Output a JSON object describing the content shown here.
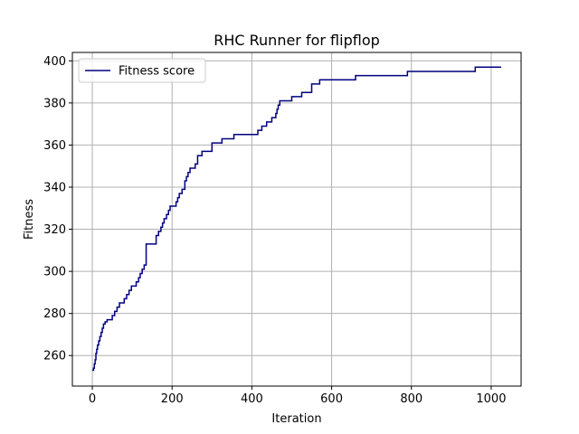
{
  "chart_data": {
    "type": "line",
    "title": "RHC Runner for flipflop",
    "xlabel": "Iteration",
    "ylabel": "Fitness",
    "xlim": [
      -50,
      1075
    ],
    "ylim": [
      245.5,
      404
    ],
    "xticks": [
      0,
      200,
      400,
      600,
      800,
      1000
    ],
    "yticks": [
      260,
      280,
      300,
      320,
      340,
      360,
      380,
      400
    ],
    "grid": true,
    "legend_position": "top-left",
    "line_color": "#000080",
    "grid_color": "#b0b0b0",
    "series": [
      {
        "name": "Fitness score",
        "step": true,
        "x": [
          0,
          3,
          5,
          7,
          9,
          11,
          13,
          16,
          19,
          22,
          25,
          28,
          32,
          37,
          50,
          56,
          62,
          68,
          80,
          86,
          92,
          98,
          110,
          116,
          120,
          125,
          130,
          135,
          160,
          166,
          172,
          176,
          180,
          186,
          191,
          195,
          210,
          214,
          218,
          225,
          232,
          236,
          240,
          245,
          258,
          264,
          275,
          300,
          325,
          355,
          415,
          425,
          437,
          450,
          460,
          463,
          466,
          470,
          475,
          500,
          525,
          550,
          570,
          595,
          660,
          790,
          960,
          1025
        ],
        "y": [
          253,
          254,
          256,
          258,
          261,
          263,
          265,
          267,
          269,
          271,
          273,
          275,
          276,
          277,
          279,
          281,
          283,
          285,
          287,
          289,
          291,
          293,
          295,
          297,
          299,
          301,
          303,
          313,
          317,
          319,
          321,
          323,
          325,
          327,
          329,
          331,
          333,
          335,
          337,
          339,
          343,
          345,
          347,
          349,
          351,
          355,
          357,
          361,
          363,
          365,
          367,
          369,
          371,
          373,
          375,
          377,
          379,
          381,
          381,
          383,
          385,
          389,
          391,
          391,
          393,
          395,
          397,
          397
        ]
      }
    ]
  }
}
